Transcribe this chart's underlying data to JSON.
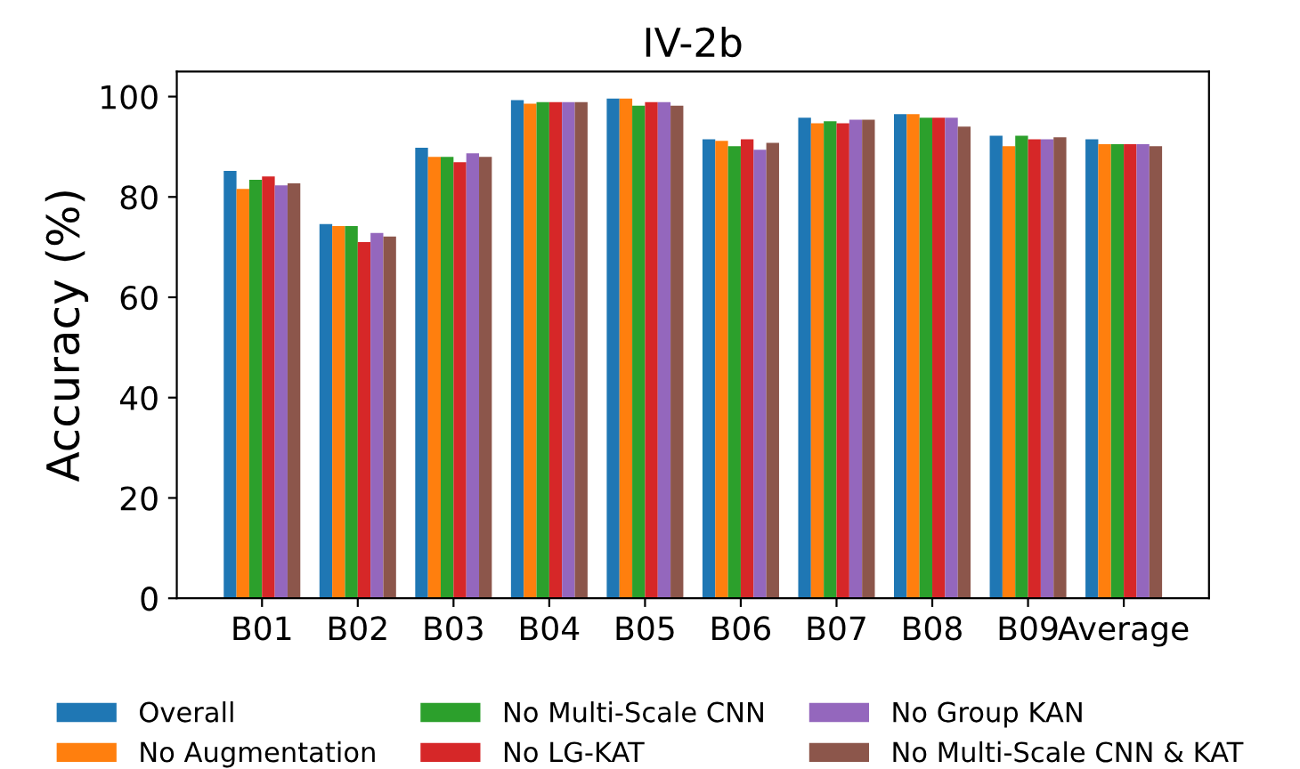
{
  "chart_data": {
    "type": "bar",
    "title": "IV-2b",
    "ylabel": "Accuracy (%)",
    "categories": [
      "B01",
      "B02",
      "B03",
      "B04",
      "B05",
      "B06",
      "B07",
      "B08",
      "B09",
      "Average"
    ],
    "series": [
      {
        "name": "Overall",
        "color": "#1f77b4",
        "values": [
          85.2,
          74.6,
          89.8,
          99.3,
          99.6,
          91.5,
          95.8,
          96.5,
          92.2,
          91.5
        ]
      },
      {
        "name": "No Augmentation",
        "color": "#ff7f0e",
        "values": [
          81.6,
          74.2,
          88.0,
          98.6,
          99.6,
          91.2,
          94.7,
          96.5,
          90.1,
          90.5
        ]
      },
      {
        "name": "No Multi-Scale CNN",
        "color": "#2ca02c",
        "values": [
          83.4,
          74.2,
          88.0,
          98.9,
          98.2,
          90.1,
          95.1,
          95.8,
          92.2,
          90.5
        ]
      },
      {
        "name": "No LG-KAT",
        "color": "#d62728",
        "values": [
          84.1,
          71.0,
          86.9,
          98.9,
          98.9,
          91.5,
          94.7,
          95.8,
          91.5,
          90.5
        ]
      },
      {
        "name": "No Group KAN",
        "color": "#9467bd",
        "values": [
          82.3,
          72.8,
          88.7,
          98.9,
          98.9,
          89.4,
          95.4,
          95.8,
          91.5,
          90.5
        ]
      },
      {
        "name": "No Multi-Scale CNN & KAT",
        "color": "#8c564b",
        "values": [
          82.7,
          72.1,
          88.0,
          98.9,
          98.2,
          90.8,
          95.4,
          94.0,
          91.9,
          90.1
        ]
      }
    ],
    "ylim": [
      0,
      105
    ],
    "yticks": [
      0,
      20,
      40,
      60,
      80,
      100
    ],
    "grid": false,
    "legend": "bottom"
  }
}
